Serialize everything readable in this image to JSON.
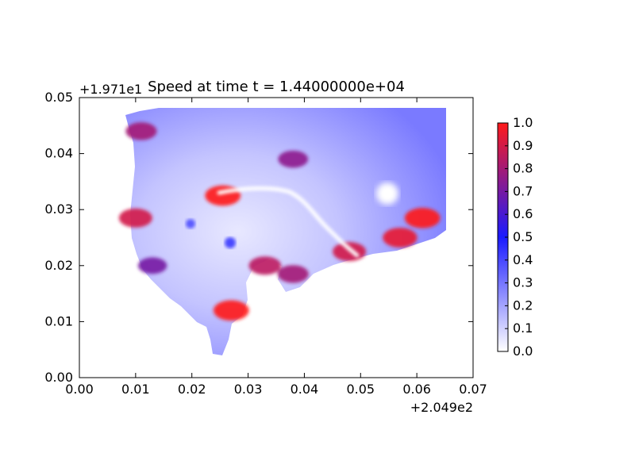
{
  "chart_data": {
    "type": "heatmap",
    "title": "Speed at time t = 1.44000000e+04",
    "xlabel": "",
    "ylabel": "",
    "x_offset_label": "+2.049e2",
    "y_offset_label": "+1.971e1",
    "xlim": [
      0.0,
      0.07
    ],
    "ylim": [
      0.0,
      0.05
    ],
    "x_ticks": [
      "0.00",
      "0.01",
      "0.02",
      "0.03",
      "0.04",
      "0.05",
      "0.06",
      "0.07"
    ],
    "y_ticks": [
      "0.00",
      "0.01",
      "0.02",
      "0.03",
      "0.04",
      "0.05"
    ],
    "colorbar": {
      "min": 0.0,
      "max": 1.0,
      "ticks": [
        "0.0",
        "0.1",
        "0.2",
        "0.3",
        "0.4",
        "0.5",
        "0.6",
        "0.7",
        "0.8",
        "0.9",
        "1.0"
      ],
      "colors": [
        "#ffffff",
        "#1a1aff",
        "#ff1a1a"
      ]
    },
    "grid": false,
    "hotspots": [
      {
        "x": 0.0255,
        "y": 0.0325,
        "value": 1.0
      },
      {
        "x": 0.027,
        "y": 0.012,
        "value": 1.0
      },
      {
        "x": 0.061,
        "y": 0.0285,
        "value": 1.0
      },
      {
        "x": 0.057,
        "y": 0.025,
        "value": 0.95
      },
      {
        "x": 0.048,
        "y": 0.0225,
        "value": 0.9
      },
      {
        "x": 0.033,
        "y": 0.02,
        "value": 0.85
      },
      {
        "x": 0.038,
        "y": 0.0185,
        "value": 0.8
      },
      {
        "x": 0.038,
        "y": 0.039,
        "value": 0.75
      },
      {
        "x": 0.01,
        "y": 0.0285,
        "value": 0.9
      },
      {
        "x": 0.011,
        "y": 0.044,
        "value": 0.8
      },
      {
        "x": 0.013,
        "y": 0.02,
        "value": 0.7
      }
    ]
  }
}
